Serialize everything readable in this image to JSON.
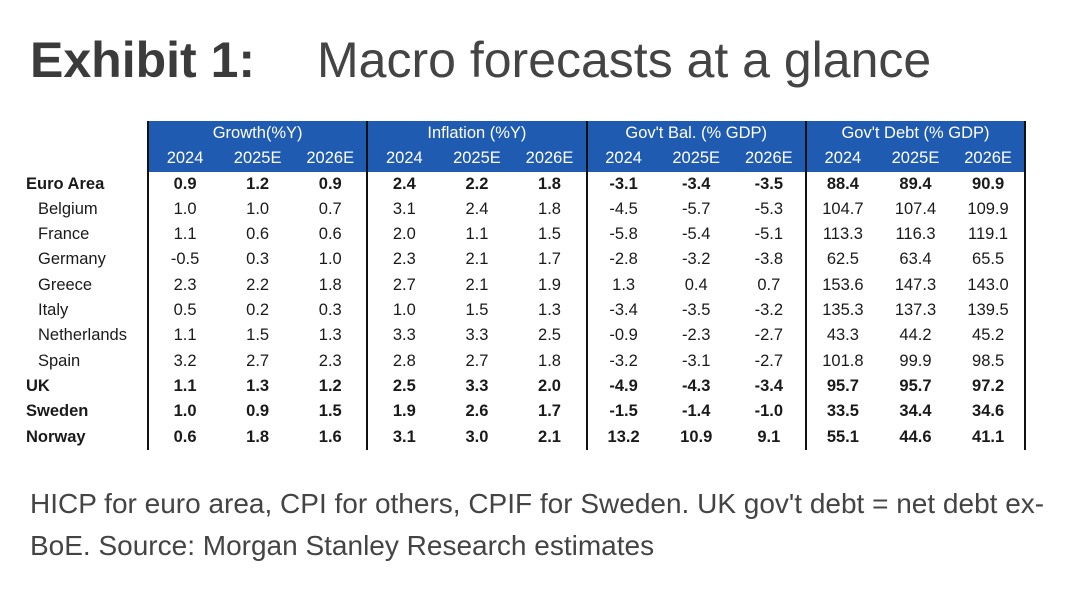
{
  "title": {
    "exhibit": "Exhibit 1:",
    "main": "Macro forecasts at a glance"
  },
  "chart_data": {
    "type": "table",
    "groups": [
      {
        "name": "Growth(%Y)",
        "years": [
          "2024",
          "2025E",
          "2026E"
        ]
      },
      {
        "name": "Inflation (%Y)",
        "years": [
          "2024",
          "2025E",
          "2026E"
        ]
      },
      {
        "name": "Gov't Bal. (% GDP)",
        "years": [
          "2024",
          "2025E",
          "2026E"
        ]
      },
      {
        "name": "Gov't Debt (% GDP)",
        "years": [
          "2024",
          "2025E",
          "2026E"
        ]
      }
    ],
    "rows": [
      {
        "label": "Euro Area",
        "bold": true,
        "sub": false,
        "values": [
          "0.9",
          "1.2",
          "0.9",
          "2.4",
          "2.2",
          "1.8",
          "-3.1",
          "-3.4",
          "-3.5",
          "88.4",
          "89.4",
          "90.9"
        ]
      },
      {
        "label": "Belgium",
        "bold": false,
        "sub": true,
        "values": [
          "1.0",
          "1.0",
          "0.7",
          "3.1",
          "2.4",
          "1.8",
          "-4.5",
          "-5.7",
          "-5.3",
          "104.7",
          "107.4",
          "109.9"
        ]
      },
      {
        "label": "France",
        "bold": false,
        "sub": true,
        "values": [
          "1.1",
          "0.6",
          "0.6",
          "2.0",
          "1.1",
          "1.5",
          "-5.8",
          "-5.4",
          "-5.1",
          "113.3",
          "116.3",
          "119.1"
        ]
      },
      {
        "label": "Germany",
        "bold": false,
        "sub": true,
        "values": [
          "-0.5",
          "0.3",
          "1.0",
          "2.3",
          "2.1",
          "1.7",
          "-2.8",
          "-3.2",
          "-3.8",
          "62.5",
          "63.4",
          "65.5"
        ]
      },
      {
        "label": "Greece",
        "bold": false,
        "sub": true,
        "values": [
          "2.3",
          "2.2",
          "1.8",
          "2.7",
          "2.1",
          "1.9",
          "1.3",
          "0.4",
          "0.7",
          "153.6",
          "147.3",
          "143.0"
        ]
      },
      {
        "label": "Italy",
        "bold": false,
        "sub": true,
        "values": [
          "0.5",
          "0.2",
          "0.3",
          "1.0",
          "1.5",
          "1.3",
          "-3.4",
          "-3.5",
          "-3.2",
          "135.3",
          "137.3",
          "139.5"
        ]
      },
      {
        "label": "Netherlands",
        "bold": false,
        "sub": true,
        "values": [
          "1.1",
          "1.5",
          "1.3",
          "3.3",
          "3.3",
          "2.5",
          "-0.9",
          "-2.3",
          "-2.7",
          "43.3",
          "44.2",
          "45.2"
        ]
      },
      {
        "label": "Spain",
        "bold": false,
        "sub": true,
        "values": [
          "3.2",
          "2.7",
          "2.3",
          "2.8",
          "2.7",
          "1.8",
          "-3.2",
          "-3.1",
          "-2.7",
          "101.8",
          "99.9",
          "98.5"
        ]
      },
      {
        "label": "UK",
        "bold": true,
        "sub": false,
        "values": [
          "1.1",
          "1.3",
          "1.2",
          "2.5",
          "3.3",
          "2.0",
          "-4.9",
          "-4.3",
          "-3.4",
          "95.7",
          "95.7",
          "97.2"
        ]
      },
      {
        "label": "Sweden",
        "bold": true,
        "sub": false,
        "values": [
          "1.0",
          "0.9",
          "1.5",
          "1.9",
          "2.6",
          "1.7",
          "-1.5",
          "-1.4",
          "-1.0",
          "33.5",
          "34.4",
          "34.6"
        ]
      },
      {
        "label": "Norway",
        "bold": true,
        "sub": false,
        "values": [
          "0.6",
          "1.8",
          "1.6",
          "3.1",
          "3.0",
          "2.1",
          "13.2",
          "10.9",
          "9.1",
          "55.1",
          "44.6",
          "41.1"
        ]
      }
    ]
  },
  "note": "HICP for euro area, CPI for others, CPIF for Sweden. UK gov't debt = net debt ex-BoE. Source: Morgan Stanley Research estimates",
  "colors": {
    "header_bg": "#1f5bb0",
    "header_text": "#ffffff"
  }
}
